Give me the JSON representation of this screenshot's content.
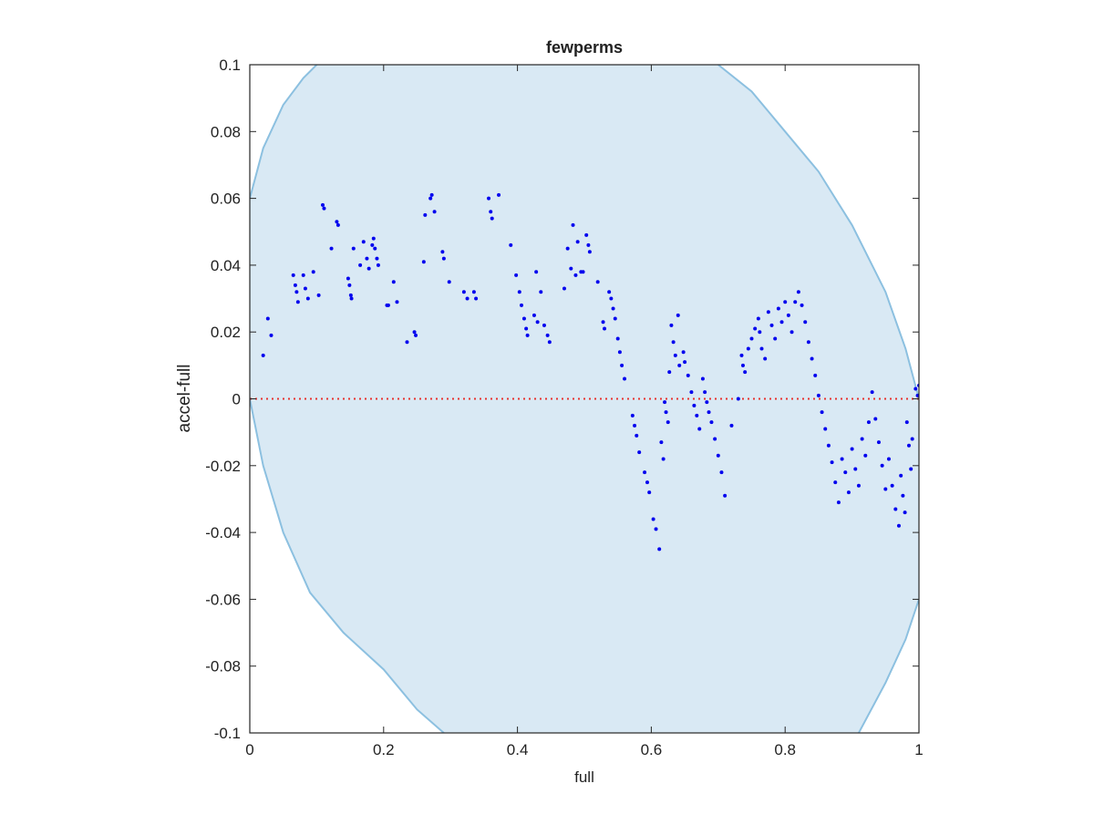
{
  "chart_data": {
    "type": "scatter",
    "title": "fewperms",
    "x_label": "full",
    "y_label": "accel-full",
    "xlim": [
      0,
      1
    ],
    "ylim": [
      -0.1,
      0.1
    ],
    "xticks": [
      0,
      0.2,
      0.4,
      0.6,
      0.8,
      1
    ],
    "yticks": [
      -0.1,
      -0.08,
      -0.06,
      -0.04,
      -0.02,
      0,
      0.02,
      0.04,
      0.06,
      0.08,
      0.1
    ],
    "region": {
      "color": "#d9e9f4",
      "edge_color": "#8cc0e0",
      "upper": [
        {
          "x": [
            0,
            0.02,
            0.05,
            0.08,
            0.1
          ],
          "y": [
            0.06,
            0.075,
            0.088,
            0.096,
            0.1
          ]
        },
        {
          "x": [
            0.7,
            0.75,
            0.8,
            0.85,
            0.9,
            0.95,
            0.98,
            1
          ],
          "y": [
            0.1,
            0.092,
            0.08,
            0.068,
            0.052,
            0.032,
            0.015,
            0
          ]
        }
      ],
      "lower": [
        {
          "x": [
            0,
            0.02,
            0.05,
            0.09,
            0.14,
            0.2,
            0.25,
            0.29
          ],
          "y": [
            0,
            -0.02,
            -0.04,
            -0.058,
            -0.07,
            -0.081,
            -0.093,
            -0.1
          ]
        },
        {
          "x": [
            0.91,
            0.95,
            0.98,
            1
          ],
          "y": [
            -0.1,
            -0.085,
            -0.072,
            -0.06
          ]
        }
      ]
    },
    "reference_line": {
      "y": 0,
      "color": "#e8322e"
    },
    "color": "#0000ee",
    "x": [
      0.02,
      0.027,
      0.032,
      0.065,
      0.068,
      0.07,
      0.072,
      0.08,
      0.083,
      0.087,
      0.095,
      0.103,
      0.109,
      0.111,
      0.122,
      0.13,
      0.132,
      0.147,
      0.149,
      0.151,
      0.152,
      0.155,
      0.165,
      0.17,
      0.175,
      0.178,
      0.183,
      0.185,
      0.187,
      0.19,
      0.192,
      0.205,
      0.207,
      0.215,
      0.22,
      0.235,
      0.246,
      0.248,
      0.26,
      0.262,
      0.27,
      0.272,
      0.276,
      0.288,
      0.29,
      0.298,
      0.32,
      0.325,
      0.335,
      0.338,
      0.357,
      0.36,
      0.362,
      0.372,
      0.39,
      0.398,
      0.403,
      0.406,
      0.41,
      0.413,
      0.415,
      0.425,
      0.428,
      0.43,
      0.435,
      0.44,
      0.445,
      0.448,
      0.47,
      0.475,
      0.48,
      0.483,
      0.487,
      0.49,
      0.495,
      0.498,
      0.503,
      0.506,
      0.508,
      0.52,
      0.528,
      0.53,
      0.537,
      0.54,
      0.543,
      0.546,
      0.55,
      0.553,
      0.556,
      0.56,
      0.572,
      0.575,
      0.578,
      0.582,
      0.59,
      0.594,
      0.597,
      0.603,
      0.607,
      0.612,
      0.615,
      0.618,
      0.62,
      0.622,
      0.625,
      0.627,
      0.63,
      0.633,
      0.636,
      0.64,
      0.642,
      0.648,
      0.65,
      0.655,
      0.66,
      0.664,
      0.668,
      0.672,
      0.677,
      0.68,
      0.683,
      0.686,
      0.69,
      0.695,
      0.7,
      0.705,
      0.71,
      0.72,
      0.73,
      0.735,
      0.737,
      0.74,
      0.745,
      0.75,
      0.755,
      0.76,
      0.762,
      0.765,
      0.77,
      0.775,
      0.78,
      0.785,
      0.79,
      0.795,
      0.8,
      0.805,
      0.81,
      0.815,
      0.82,
      0.825,
      0.83,
      0.835,
      0.84,
      0.845,
      0.85,
      0.855,
      0.86,
      0.865,
      0.87,
      0.875,
      0.88,
      0.885,
      0.89,
      0.895,
      0.9,
      0.905,
      0.91,
      0.915,
      0.92,
      0.925,
      0.93,
      0.935,
      0.94,
      0.945,
      0.95,
      0.955,
      0.96,
      0.965,
      0.97,
      0.973,
      0.976,
      0.979,
      0.982,
      0.985,
      0.988,
      0.99,
      0.995,
      0.998,
      1
    ],
    "values": [
      0.013,
      0.024,
      0.019,
      0.037,
      0.034,
      0.032,
      0.029,
      0.037,
      0.033,
      0.03,
      0.038,
      0.031,
      0.058,
      0.057,
      0.045,
      0.053,
      0.052,
      0.036,
      0.034,
      0.031,
      0.03,
      0.045,
      0.04,
      0.047,
      0.042,
      0.039,
      0.046,
      0.048,
      0.045,
      0.042,
      0.04,
      0.028,
      0.028,
      0.035,
      0.029,
      0.017,
      0.02,
      0.019,
      0.041,
      0.055,
      0.06,
      0.061,
      0.056,
      0.044,
      0.042,
      0.035,
      0.032,
      0.03,
      0.032,
      0.03,
      0.06,
      0.056,
      0.054,
      0.061,
      0.046,
      0.037,
      0.032,
      0.028,
      0.024,
      0.021,
      0.019,
      0.025,
      0.038,
      0.023,
      0.032,
      0.022,
      0.019,
      0.017,
      0.033,
      0.045,
      0.039,
      0.052,
      0.037,
      0.047,
      0.038,
      0.038,
      0.049,
      0.046,
      0.044,
      0.035,
      0.023,
      0.021,
      0.032,
      0.03,
      0.027,
      0.024,
      0.018,
      0.014,
      0.01,
      0.006,
      -0.005,
      -0.008,
      -0.011,
      -0.016,
      -0.022,
      -0.025,
      -0.028,
      -0.036,
      -0.039,
      -0.045,
      -0.013,
      -0.018,
      -0.001,
      -0.004,
      -0.007,
      0.008,
      0.022,
      0.017,
      0.013,
      0.025,
      0.01,
      0.014,
      0.011,
      0.007,
      0.002,
      -0.002,
      -0.005,
      -0.009,
      0.006,
      0.002,
      -0.001,
      -0.004,
      -0.007,
      -0.012,
      -0.017,
      -0.022,
      -0.029,
      -0.008,
      0,
      0.013,
      0.01,
      0.008,
      0.015,
      0.018,
      0.021,
      0.024,
      0.02,
      0.015,
      0.012,
      0.026,
      0.022,
      0.018,
      0.027,
      0.023,
      0.029,
      0.025,
      0.02,
      0.029,
      0.032,
      0.028,
      0.023,
      0.017,
      0.012,
      0.007,
      0.001,
      -0.004,
      -0.009,
      -0.014,
      -0.019,
      -0.025,
      -0.031,
      -0.018,
      -0.022,
      -0.028,
      -0.015,
      -0.021,
      -0.026,
      -0.012,
      -0.017,
      -0.007,
      0.002,
      -0.006,
      -0.013,
      -0.02,
      -0.027,
      -0.018,
      -0.026,
      -0.033,
      -0.038,
      -0.023,
      -0.029,
      -0.034,
      -0.007,
      -0.014,
      -0.021,
      -0.012,
      0.003,
      0.001,
      0.004
    ]
  }
}
